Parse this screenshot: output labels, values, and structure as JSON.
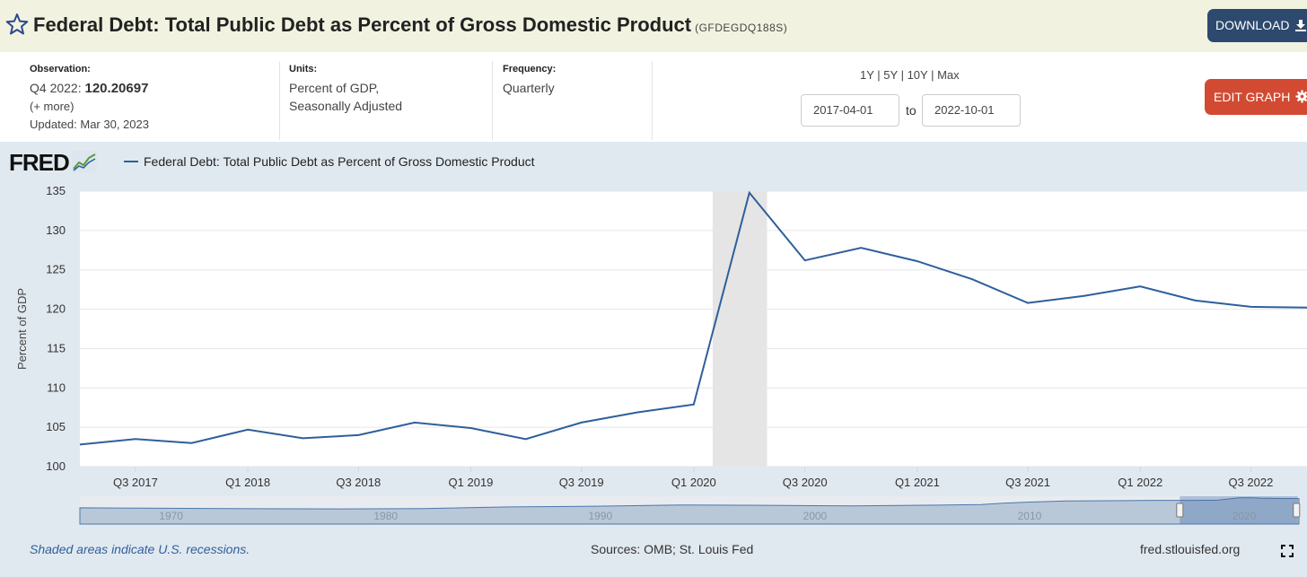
{
  "header": {
    "title": "Federal Debt: Total Public Debt as Percent of Gross Domestic Product",
    "series_id": "(GFDEGDQ188S)",
    "download_label": "DOWNLOAD",
    "star_icon": "star-outline-icon",
    "download_icon": "download-icon"
  },
  "info": {
    "observation_label": "Observation:",
    "observation_period": "Q4 2022:",
    "observation_value": "120.20697",
    "more_link": "(+ more)",
    "updated": "Updated: Mar 30, 2023",
    "units_label": "Units:",
    "units_line1": "Percent of GDP,",
    "units_line2": "Seasonally Adjusted",
    "frequency_label": "Frequency:",
    "frequency_value": "Quarterly"
  },
  "range": {
    "options": [
      "1Y",
      "5Y",
      "10Y",
      "Max"
    ],
    "start": "2017-04-01",
    "end": "2022-10-01",
    "to_label": "to",
    "edit_label": "EDIT GRAPH",
    "edit_icon": "gear-icon"
  },
  "logo": {
    "text": "FRED"
  },
  "colors": {
    "line": "#2e5f9b",
    "recession": "#e5e5e5",
    "edit": "#d24a32",
    "download": "#2d4a6e"
  },
  "chart_data": {
    "type": "line",
    "title": "",
    "xlabel": "",
    "ylabel": "Percent of GDP",
    "ylim": [
      100,
      135
    ],
    "yticks": [
      100,
      105,
      110,
      115,
      120,
      125,
      130,
      135
    ],
    "grid": true,
    "legend_position": "top-left",
    "x": [
      "2017-04-01",
      "2017-07-01",
      "2017-10-01",
      "2018-01-01",
      "2018-04-01",
      "2018-07-01",
      "2018-10-01",
      "2019-01-01",
      "2019-04-01",
      "2019-07-01",
      "2019-10-01",
      "2020-01-01",
      "2020-04-01",
      "2020-07-01",
      "2020-10-01",
      "2021-01-01",
      "2021-04-01",
      "2021-07-01",
      "2021-10-01",
      "2022-01-01",
      "2022-04-01",
      "2022-07-01",
      "2022-10-01"
    ],
    "xlim": [
      "2017-04-01",
      "2022-10-01"
    ],
    "xtick_labels": [
      {
        "label": "Q3 2017",
        "date": "2017-07-01"
      },
      {
        "label": "Q1 2018",
        "date": "2018-01-01"
      },
      {
        "label": "Q3 2018",
        "date": "2018-07-01"
      },
      {
        "label": "Q1 2019",
        "date": "2019-01-01"
      },
      {
        "label": "Q3 2019",
        "date": "2019-07-01"
      },
      {
        "label": "Q1 2020",
        "date": "2020-01-01"
      },
      {
        "label": "Q3 2020",
        "date": "2020-07-01"
      },
      {
        "label": "Q1 2021",
        "date": "2021-01-01"
      },
      {
        "label": "Q3 2021",
        "date": "2021-07-01"
      },
      {
        "label": "Q1 2022",
        "date": "2022-01-01"
      },
      {
        "label": "Q3 2022",
        "date": "2022-07-01"
      }
    ],
    "series": [
      {
        "name": "Federal Debt: Total Public Debt as Percent of Gross Domestic Product",
        "values": [
          102.8,
          103.5,
          103.0,
          104.7,
          103.6,
          104.0,
          105.6,
          104.9,
          103.5,
          105.6,
          106.9,
          107.9,
          134.8,
          126.2,
          127.8,
          126.1,
          123.8,
          120.8,
          121.7,
          122.9,
          121.1,
          120.3,
          120.2
        ]
      }
    ],
    "recessions": [
      {
        "start": "2020-02-01",
        "end": "2020-04-30"
      }
    ],
    "navigator": {
      "decade_labels": [
        "1970",
        "1980",
        "1990",
        "2000",
        "2010",
        "2020"
      ],
      "decade_years": [
        1970,
        1980,
        1990,
        2000,
        2010,
        2020
      ],
      "start_year": 1966,
      "end_year": 2022.8,
      "history_years": [
        1966,
        1970,
        1974,
        1978,
        1982,
        1986,
        1990,
        1994,
        1998,
        2002,
        2006,
        2008,
        2009,
        2010,
        2012,
        2014,
        2016,
        2018,
        2019,
        2020,
        2020.5,
        2021,
        2022,
        2022.8
      ],
      "history_values": [
        40,
        36,
        32,
        31,
        34,
        48,
        54,
        64,
        62,
        57,
        63,
        68,
        80,
        88,
        99,
        101,
        104,
        104,
        106,
        126,
        128,
        124,
        121,
        120
      ],
      "selected_start_year": 2017.25,
      "selected_end_year": 2022.75
    }
  },
  "footer": {
    "recession_note": "Shaded areas indicate U.S. recessions.",
    "sources": "Sources: OMB; St. Louis Fed",
    "site": "fred.stlouisfed.org",
    "fullscreen_icon": "fullscreen-icon"
  }
}
